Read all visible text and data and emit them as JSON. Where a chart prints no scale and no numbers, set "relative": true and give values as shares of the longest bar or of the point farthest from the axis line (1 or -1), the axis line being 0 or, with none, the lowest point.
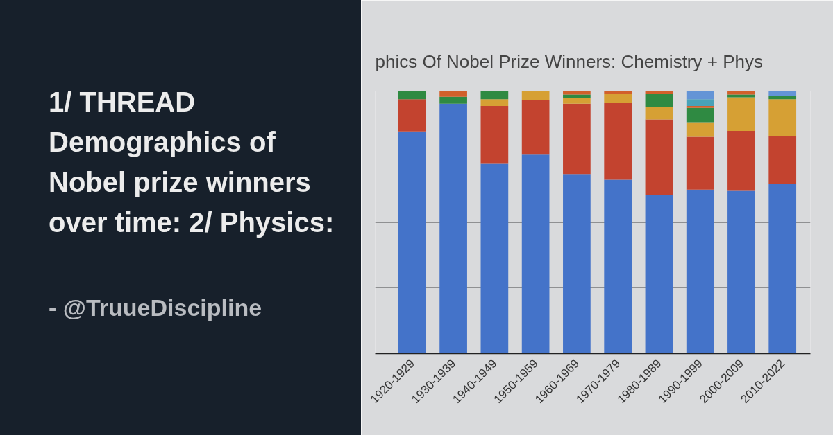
{
  "chart_data": {
    "type": "bar",
    "title": "1/ THREAD Demographics of Nobel prize winners over time: 2/ Physics:",
    "subtitle": "phics Of Nobel Prize Winners: Chemistry + Phys",
    "annotations": [
      "- @TruueDiscipline"
    ],
    "categories": [
      "1920-1929",
      "1930-1939",
      "1940-1949",
      "1950-1959",
      "1960-1969",
      "1970-1979",
      "1980-1989",
      "1990-1999",
      "2000-2009",
      "2010-2022"
    ],
    "stacked": true,
    "relative": true,
    "grid": "y",
    "series": [
      {
        "color": "#4473c9",
        "values": [
          0.846,
          0.952,
          0.723,
          0.758,
          0.684,
          0.662,
          0.604,
          0.625,
          0.62,
          0.646
        ]
      },
      {
        "color": "#c3432f",
        "values": [
          0.123,
          null,
          0.22,
          0.207,
          0.268,
          0.292,
          0.288,
          0.201,
          0.228,
          0.182
        ]
      },
      {
        "color": "#d6a034",
        "values": [
          null,
          null,
          0.026,
          0.035,
          0.022,
          0.037,
          0.047,
          0.055,
          0.128,
          0.141
        ]
      },
      {
        "color": "#2f8a42",
        "values": [
          0.031,
          0.026,
          0.031,
          null,
          0.013,
          null,
          0.05,
          0.055,
          0.011,
          0.011
        ]
      },
      {
        "color": "#d2602b",
        "values": [
          null,
          0.022,
          null,
          null,
          0.013,
          0.009,
          0.011,
          0.007,
          0.013,
          null
        ]
      },
      {
        "color": "#48a2b8",
        "values": [
          null,
          null,
          null,
          null,
          null,
          null,
          null,
          0.026,
          null,
          null
        ]
      },
      {
        "color": "#6494d6",
        "values": [
          null,
          null,
          null,
          null,
          null,
          null,
          null,
          0.031,
          null,
          0.02
        ]
      }
    ]
  }
}
